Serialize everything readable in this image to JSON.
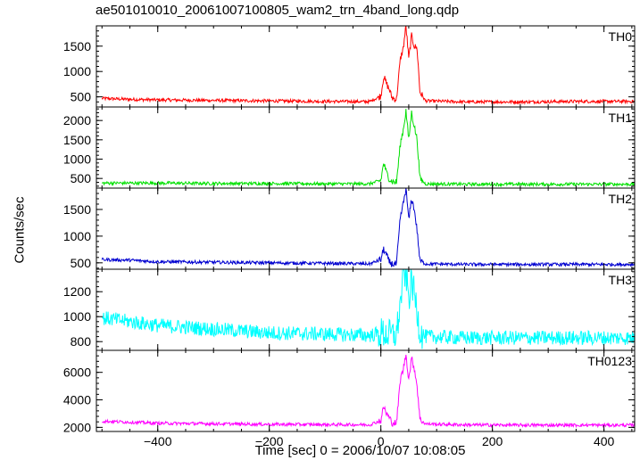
{
  "chart_data": {
    "type": "line",
    "title": "ae501010010_20061007100805_wam2_trn_4band_long.qdp",
    "xlabel": "Time [sec] 0 = 2006/10/07 10:08:05",
    "ylabel": "Counts/sec",
    "xlim": [
      -510,
      455
    ],
    "xticks": [
      -400,
      -200,
      0,
      200,
      400
    ],
    "grid": false,
    "panels": [
      {
        "name": "TH0",
        "color": "#ff0000",
        "ylim": [
          300,
          1900
        ],
        "yticks": [
          500,
          1000,
          1500
        ],
        "points": [
          [
            -500,
            470
          ],
          [
            -450,
            450
          ],
          [
            -400,
            440
          ],
          [
            -300,
            430
          ],
          [
            -200,
            420
          ],
          [
            -100,
            410
          ],
          [
            -20,
            405
          ],
          [
            0,
            520
          ],
          [
            5,
            900
          ],
          [
            10,
            760
          ],
          [
            15,
            650
          ],
          [
            20,
            480
          ],
          [
            28,
            450
          ],
          [
            35,
            1250
          ],
          [
            40,
            1450
          ],
          [
            45,
            1900
          ],
          [
            50,
            1250
          ],
          [
            55,
            1700
          ],
          [
            60,
            1500
          ],
          [
            65,
            1450
          ],
          [
            70,
            600
          ],
          [
            80,
            420
          ],
          [
            150,
            400
          ],
          [
            250,
            400
          ],
          [
            350,
            410
          ],
          [
            455,
            410
          ]
        ]
      },
      {
        "name": "TH1",
        "color": "#00e000",
        "ylim": [
          250,
          2350
        ],
        "yticks": [
          500,
          1000,
          1500,
          2000
        ],
        "points": [
          [
            -500,
            380
          ],
          [
            -400,
            380
          ],
          [
            -300,
            370
          ],
          [
            -200,
            370
          ],
          [
            -100,
            360
          ],
          [
            -20,
            360
          ],
          [
            0,
            450
          ],
          [
            5,
            900
          ],
          [
            10,
            650
          ],
          [
            15,
            500
          ],
          [
            20,
            420
          ],
          [
            28,
            400
          ],
          [
            35,
            1400
          ],
          [
            40,
            1750
          ],
          [
            45,
            2250
          ],
          [
            50,
            1500
          ],
          [
            55,
            2200
          ],
          [
            60,
            1850
          ],
          [
            65,
            1500
          ],
          [
            70,
            500
          ],
          [
            80,
            360
          ],
          [
            150,
            350
          ],
          [
            250,
            350
          ],
          [
            350,
            350
          ],
          [
            455,
            350
          ]
        ]
      },
      {
        "name": "TH2",
        "color": "#0000d0",
        "ylim": [
          380,
          1900
        ],
        "yticks": [
          500,
          1000,
          1500
        ],
        "points": [
          [
            -500,
            560
          ],
          [
            -450,
            550
          ],
          [
            -400,
            520
          ],
          [
            -300,
            510
          ],
          [
            -200,
            500
          ],
          [
            -100,
            490
          ],
          [
            -20,
            480
          ],
          [
            0,
            560
          ],
          [
            5,
            760
          ],
          [
            10,
            640
          ],
          [
            15,
            520
          ],
          [
            20,
            480
          ],
          [
            28,
            470
          ],
          [
            35,
            1350
          ],
          [
            40,
            1600
          ],
          [
            45,
            1900
          ],
          [
            50,
            1300
          ],
          [
            55,
            1700
          ],
          [
            60,
            1500
          ],
          [
            65,
            1100
          ],
          [
            70,
            540
          ],
          [
            80,
            480
          ],
          [
            150,
            470
          ],
          [
            250,
            470
          ],
          [
            350,
            470
          ],
          [
            455,
            470
          ]
        ]
      },
      {
        "name": "TH3",
        "color": "#00ffff",
        "ylim": [
          730,
          1380
        ],
        "yticks": [
          800,
          1000,
          1200
        ],
        "points": [
          [
            -500,
            990
          ],
          [
            -450,
            960
          ],
          [
            -400,
            930
          ],
          [
            -300,
            900
          ],
          [
            -200,
            870
          ],
          [
            -100,
            860
          ],
          [
            -20,
            850
          ],
          [
            0,
            870
          ],
          [
            10,
            860
          ],
          [
            20,
            850
          ],
          [
            28,
            860
          ],
          [
            35,
            1100
          ],
          [
            40,
            1330
          ],
          [
            45,
            1350
          ],
          [
            50,
            1150
          ],
          [
            55,
            1280
          ],
          [
            60,
            1180
          ],
          [
            65,
            1050
          ],
          [
            70,
            880
          ],
          [
            80,
            840
          ],
          [
            150,
            830
          ],
          [
            250,
            830
          ],
          [
            350,
            830
          ],
          [
            455,
            830
          ]
        ]
      },
      {
        "name": "TH0123",
        "color": "#ff00ff",
        "ylim": [
          1700,
          7600
        ],
        "yticks": [
          2000,
          4000,
          6000
        ],
        "points": [
          [
            -500,
            2450
          ],
          [
            -450,
            2380
          ],
          [
            -400,
            2300
          ],
          [
            -300,
            2260
          ],
          [
            -200,
            2220
          ],
          [
            -100,
            2200
          ],
          [
            -20,
            2190
          ],
          [
            0,
            2500
          ],
          [
            5,
            3500
          ],
          [
            10,
            3000
          ],
          [
            15,
            2700
          ],
          [
            20,
            2350
          ],
          [
            28,
            2300
          ],
          [
            35,
            5500
          ],
          [
            40,
            6200
          ],
          [
            45,
            7300
          ],
          [
            50,
            5500
          ],
          [
            55,
            7000
          ],
          [
            60,
            6300
          ],
          [
            65,
            5000
          ],
          [
            70,
            2600
          ],
          [
            80,
            2250
          ],
          [
            150,
            2180
          ],
          [
            250,
            2160
          ],
          [
            350,
            2160
          ],
          [
            455,
            2160
          ]
        ]
      }
    ]
  }
}
